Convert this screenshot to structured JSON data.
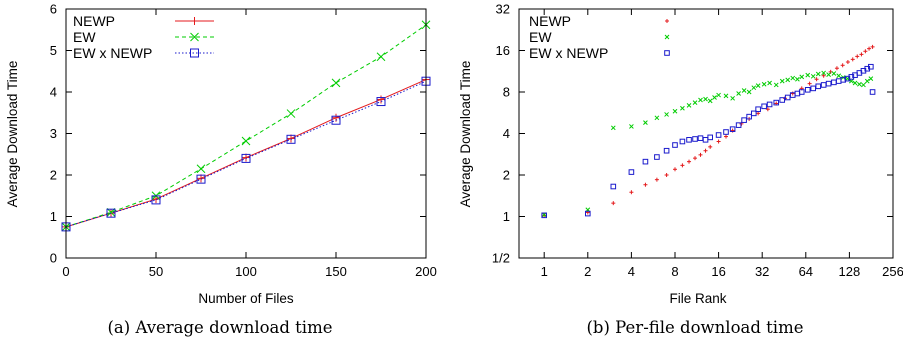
{
  "chart_data": [
    {
      "type": "line",
      "xlabel": "Number of Files",
      "ylabel": "Average Download Time",
      "caption": "(a) Average download time",
      "xlim": [
        0,
        200
      ],
      "ylim": [
        0,
        6
      ],
      "xticks": [
        "0",
        "50",
        "100",
        "150",
        "200"
      ],
      "yticks": [
        "0",
        "1",
        "2",
        "3",
        "4",
        "5",
        "6"
      ],
      "legend_position": "top-left",
      "x": [
        0,
        25,
        50,
        75,
        100,
        125,
        150,
        175,
        200
      ],
      "series": [
        {
          "name": "NEWP",
          "color": "#e41a1c",
          "marker": "plus",
          "dash": "solid",
          "values": [
            0.75,
            1.08,
            1.42,
            1.92,
            2.42,
            2.88,
            3.38,
            3.82,
            4.3
          ]
        },
        {
          "name": "EW",
          "color": "#00cc00",
          "marker": "x",
          "dash": "dashed",
          "values": [
            0.75,
            1.1,
            1.5,
            2.15,
            2.82,
            3.48,
            4.22,
            4.85,
            5.62
          ]
        },
        {
          "name": "EW x NEWP",
          "color": "#1a1acc",
          "marker": "square",
          "dash": "dotted",
          "values": [
            0.75,
            1.08,
            1.4,
            1.9,
            2.4,
            2.86,
            3.32,
            3.77,
            4.26
          ]
        }
      ]
    },
    {
      "type": "scatter",
      "xlabel": "File Rank",
      "ylabel": "Average Download Time",
      "caption": "(b) Per-file download time",
      "xscale": "log2",
      "yscale": "log2",
      "xlim": [
        0.67,
        256
      ],
      "ylim": [
        0.5,
        32
      ],
      "xticks": [
        "1",
        "2",
        "4",
        "8",
        "16",
        "32",
        "64",
        "128",
        "256"
      ],
      "yticks": [
        "1/2",
        "1",
        "2",
        "4",
        "8",
        "16",
        "32"
      ],
      "legend_position": "top-left",
      "series": [
        {
          "name": "NEWP",
          "color": "#e41a1c",
          "marker": "plus",
          "points": [
            [
              1,
              1.02
            ],
            [
              2,
              1.07
            ],
            [
              3,
              1.25
            ],
            [
              4,
              1.5
            ],
            [
              5,
              1.7
            ],
            [
              6,
              1.85
            ],
            [
              7,
              2.0
            ],
            [
              8,
              2.2
            ],
            [
              9,
              2.35
            ],
            [
              10,
              2.5
            ],
            [
              11,
              2.65
            ],
            [
              12,
              2.8
            ],
            [
              13,
              3.0
            ],
            [
              14,
              3.2
            ],
            [
              16,
              3.5
            ],
            [
              18,
              3.8
            ],
            [
              20,
              4.2
            ],
            [
              23,
              4.7
            ],
            [
              26,
              5.1
            ],
            [
              30,
              5.6
            ],
            [
              35,
              6.0
            ],
            [
              40,
              6.6
            ],
            [
              46,
              7.2
            ],
            [
              52,
              7.8
            ],
            [
              60,
              8.5
            ],
            [
              68,
              9.2
            ],
            [
              76,
              9.9
            ],
            [
              85,
              10.5
            ],
            [
              95,
              11.2
            ],
            [
              105,
              11.9
            ],
            [
              115,
              12.5
            ],
            [
              125,
              13.2
            ],
            [
              135,
              13.8
            ],
            [
              145,
              14.5
            ],
            [
              155,
              15.0
            ],
            [
              165,
              15.8
            ],
            [
              175,
              16.5
            ],
            [
              185,
              17.0
            ]
          ]
        },
        {
          "name": "EW",
          "color": "#00cc00",
          "marker": "x",
          "points": [
            [
              1,
              1.03
            ],
            [
              2,
              1.12
            ],
            [
              3,
              4.4
            ],
            [
              4,
              4.5
            ],
            [
              5,
              4.8
            ],
            [
              6,
              5.2
            ],
            [
              7,
              5.5
            ],
            [
              8,
              5.8
            ],
            [
              9,
              6.1
            ],
            [
              10,
              6.4
            ],
            [
              11,
              6.7
            ],
            [
              12,
              7.0
            ],
            [
              13,
              7.1
            ],
            [
              14,
              6.9
            ],
            [
              15,
              7.3
            ],
            [
              16,
              7.6
            ],
            [
              18,
              7.5
            ],
            [
              20,
              7.2
            ],
            [
              22,
              7.8
            ],
            [
              24,
              8.2
            ],
            [
              26,
              8.0
            ],
            [
              28,
              8.6
            ],
            [
              30,
              8.9
            ],
            [
              33,
              9.1
            ],
            [
              36,
              9.3
            ],
            [
              40,
              9.0
            ],
            [
              44,
              9.6
            ],
            [
              48,
              9.8
            ],
            [
              52,
              10.1
            ],
            [
              56,
              9.9
            ],
            [
              60,
              10.3
            ],
            [
              66,
              10.6
            ],
            [
              72,
              10.4
            ],
            [
              78,
              10.8
            ],
            [
              85,
              11.0
            ],
            [
              92,
              10.7
            ],
            [
              100,
              10.9
            ],
            [
              108,
              10.5
            ],
            [
              116,
              10.2
            ],
            [
              124,
              10.0
            ],
            [
              132,
              9.6
            ],
            [
              140,
              9.3
            ],
            [
              150,
              9.1
            ],
            [
              160,
              9.0
            ],
            [
              170,
              9.6
            ],
            [
              180,
              10.0
            ]
          ]
        },
        {
          "name": "EW x NEWP",
          "color": "#1a1acc",
          "marker": "square",
          "points": [
            [
              1,
              1.02
            ],
            [
              2,
              1.05
            ],
            [
              3,
              1.65
            ],
            [
              4,
              2.1
            ],
            [
              5,
              2.5
            ],
            [
              6,
              2.7
            ],
            [
              7,
              3.0
            ],
            [
              8,
              3.3
            ],
            [
              9,
              3.5
            ],
            [
              10,
              3.6
            ],
            [
              11,
              3.65
            ],
            [
              12,
              3.7
            ],
            [
              13,
              3.6
            ],
            [
              14,
              3.75
            ],
            [
              16,
              3.9
            ],
            [
              18,
              4.1
            ],
            [
              20,
              4.3
            ],
            [
              22,
              4.6
            ],
            [
              24,
              5.0
            ],
            [
              26,
              5.3
            ],
            [
              28,
              5.6
            ],
            [
              30,
              6.0
            ],
            [
              33,
              6.3
            ],
            [
              36,
              6.5
            ],
            [
              40,
              6.7
            ],
            [
              44,
              7.0
            ],
            [
              48,
              7.3
            ],
            [
              52,
              7.6
            ],
            [
              56,
              7.8
            ],
            [
              60,
              8.0
            ],
            [
              66,
              8.3
            ],
            [
              72,
              8.5
            ],
            [
              78,
              8.8
            ],
            [
              85,
              9.0
            ],
            [
              92,
              9.2
            ],
            [
              100,
              9.4
            ],
            [
              108,
              9.6
            ],
            [
              116,
              9.8
            ],
            [
              124,
              10.0
            ],
            [
              132,
              10.3
            ],
            [
              140,
              10.6
            ],
            [
              150,
              11.0
            ],
            [
              160,
              11.4
            ],
            [
              170,
              11.8
            ],
            [
              180,
              12.2
            ],
            [
              185,
              8.0
            ]
          ]
        }
      ]
    }
  ]
}
